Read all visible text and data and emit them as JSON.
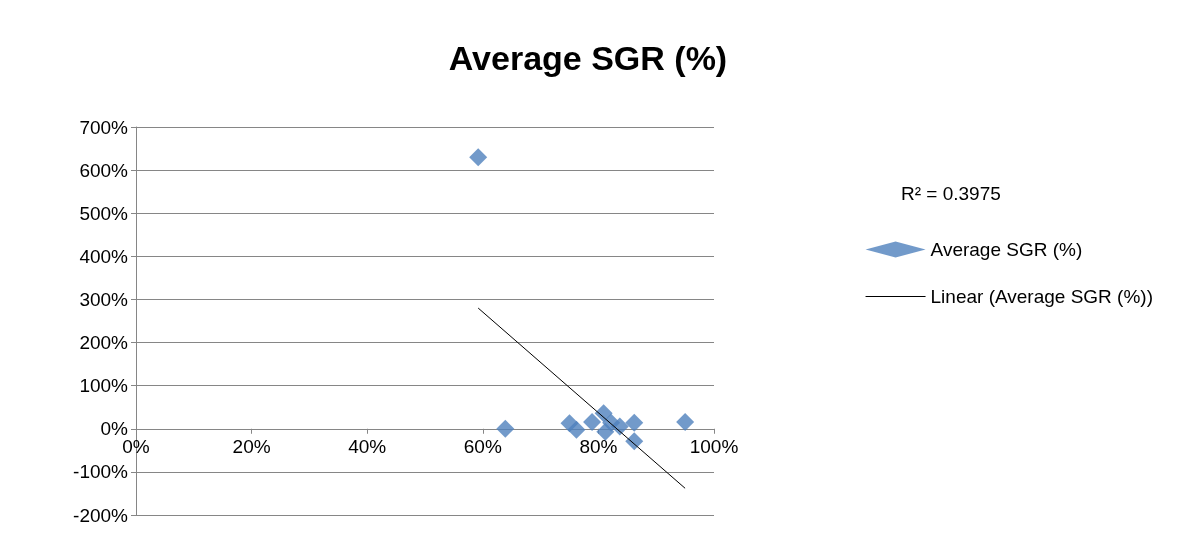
{
  "chart_data": {
    "type": "scatter",
    "title": "Average SGR (%)",
    "series": [
      {
        "name": "Average SGR (%)",
        "marker": "diamond",
        "color": "#4f81bd",
        "x": [
          59.2,
          63.9,
          75.0,
          76.2,
          78.9,
          80.9,
          81.2,
          82.2,
          83.7,
          86.2,
          86.2,
          95.0
        ],
        "values": [
          630,
          0,
          13,
          -2,
          16,
          36,
          -7,
          14,
          5,
          14,
          -29,
          16
        ]
      },
      {
        "name": "Linear (Average SGR (%))",
        "type": "line",
        "marker": "none",
        "color": "#000000",
        "x": [
          59.2,
          95.0
        ],
        "values": [
          280,
          -138
        ]
      }
    ],
    "xlim": [
      0,
      100
    ],
    "xticks": [
      {
        "value": 0,
        "label": "0%"
      },
      {
        "value": 20,
        "label": "20%"
      },
      {
        "value": 40,
        "label": "40%"
      },
      {
        "value": 60,
        "label": "60%"
      },
      {
        "value": 80,
        "label": "80%"
      },
      {
        "value": 100,
        "label": "100%"
      }
    ],
    "ylim": [
      -200,
      700
    ],
    "yticks": [
      {
        "value": -200,
        "label": "-200%"
      },
      {
        "value": -100,
        "label": "-100%"
      },
      {
        "value": 0,
        "label": "0%"
      },
      {
        "value": 100,
        "label": "100%"
      },
      {
        "value": 200,
        "label": "200%"
      },
      {
        "value": 300,
        "label": "300%"
      },
      {
        "value": 400,
        "label": "400%"
      },
      {
        "value": 500,
        "label": "500%"
      },
      {
        "value": 600,
        "label": "600%"
      },
      {
        "value": 700,
        "label": "700%"
      }
    ],
    "annotations": [
      "R² = 0.3975"
    ],
    "grid": "y",
    "legend": "right",
    "line_style": "solid"
  }
}
